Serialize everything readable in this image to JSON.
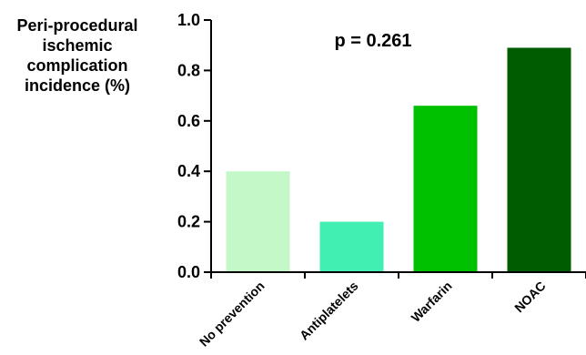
{
  "chart_data": {
    "type": "bar",
    "ylabel_lines": [
      "Peri-procedural",
      "ischemic",
      "complication",
      "incidence (%)"
    ],
    "annotation": "p = 0.261",
    "categories": [
      "No prevention",
      "Antiplatelets",
      "Warfarin",
      "NOAC"
    ],
    "values": [
      0.4,
      0.2,
      0.66,
      0.89
    ],
    "colors": [
      "#c4f8c8",
      "#42efb2",
      "#00c100",
      "#005c00"
    ],
    "ylim": [
      0,
      1.0
    ],
    "yticks": [
      "0.0",
      "0.2",
      "0.4",
      "0.6",
      "0.8",
      "1.0"
    ],
    "grid": false
  }
}
